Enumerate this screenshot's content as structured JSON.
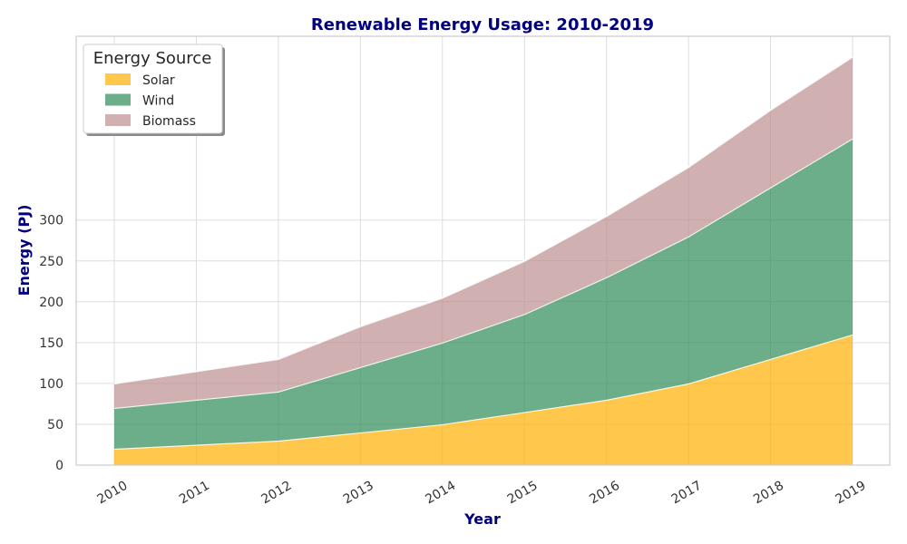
{
  "chart_data": {
    "type": "area",
    "stacked": true,
    "title": "Renewable Energy Usage: 2010-2019",
    "xlabel": "Year",
    "ylabel": "Energy (PJ)",
    "x": [
      "2010",
      "2011",
      "2012",
      "2013",
      "2014",
      "2015",
      "2016",
      "2017",
      "2018",
      "2019"
    ],
    "series": [
      {
        "name": "Solar",
        "color": "#FFB000",
        "values": [
          20,
          25,
          30,
          40,
          50,
          65,
          80,
          100,
          130,
          160
        ]
      },
      {
        "name": "Wind",
        "color": "#2E8B57",
        "values": [
          50,
          55,
          60,
          80,
          100,
          120,
          150,
          180,
          210,
          240
        ]
      },
      {
        "name": "Biomass",
        "color": "#BC8F8F",
        "values": [
          30,
          35,
          40,
          50,
          55,
          65,
          75,
          85,
          95,
          100
        ]
      }
    ],
    "yticks": [
      0,
      50,
      100,
      150,
      200,
      250,
      300
    ],
    "ylim": [
      0,
      525
    ],
    "legend": {
      "title": "Energy Source",
      "placement": "top-left"
    },
    "grid": true
  }
}
